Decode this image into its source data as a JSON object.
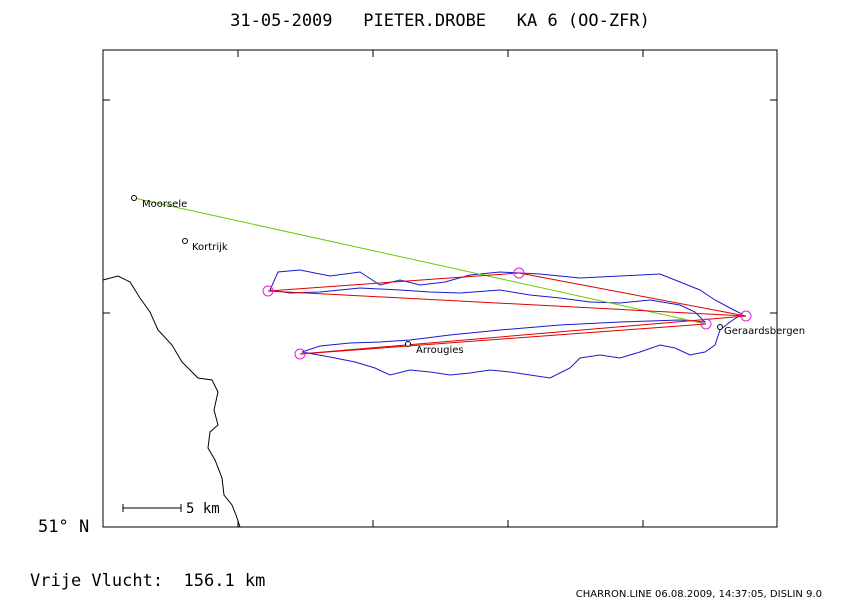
{
  "header": {
    "title": "31-05-2009   PIETER.DROBE   KA 6 (OO-ZFR)"
  },
  "places": [
    {
      "label": "Moorsele"
    },
    {
      "label": "Kortrijk"
    },
    {
      "label": "Arrougies"
    },
    {
      "label": "Geraardsbergen"
    }
  ],
  "map": {
    "latitude_label": "51° N",
    "scale_label": "5 km"
  },
  "footer": {
    "distance": "Vrije Vlucht:  156.1 km",
    "credit": "CHARRON.LINE 06.08.2009, 14:37:05, DISLIN 9.0"
  }
}
